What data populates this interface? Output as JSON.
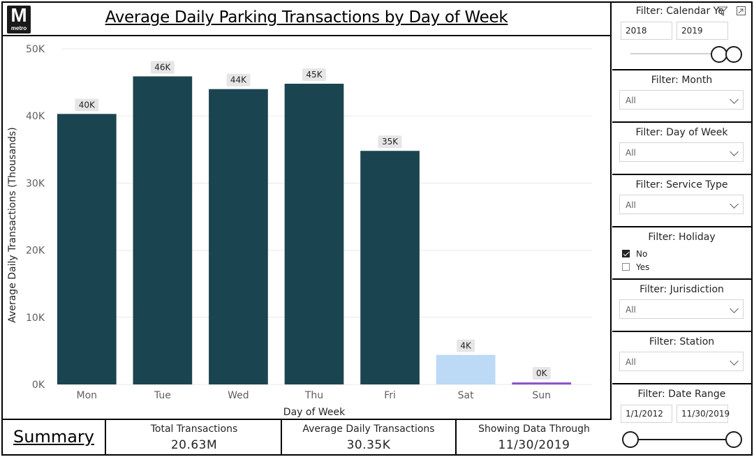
{
  "header": {
    "logo_letter": "M",
    "logo_sub": "metro",
    "title": "Average Daily Parking Transactions by Day of Week"
  },
  "chart_data": {
    "type": "bar",
    "title": "Average Daily Parking Transactions by Day of Week",
    "xlabel": "Day of Week",
    "ylabel": "Average Daily Transactions (Thousands)",
    "categories": [
      "Mon",
      "Tue",
      "Wed",
      "Thu",
      "Fri",
      "Sat",
      "Sun"
    ],
    "values": [
      40.3,
      45.9,
      44.0,
      44.8,
      34.8,
      4.4,
      0.3
    ],
    "data_labels": [
      "40K",
      "46K",
      "44K",
      "45K",
      "35K",
      "4K",
      "0K"
    ],
    "colors": [
      "#1a4450",
      "#1a4450",
      "#1a4450",
      "#1a4450",
      "#1a4450",
      "#bcd9f6",
      "#8c50c8"
    ],
    "ylim": [
      0,
      50
    ],
    "yticks": [
      0,
      10,
      20,
      30,
      40,
      50
    ],
    "ytick_labels": [
      "0K",
      "10K",
      "20K",
      "30K",
      "40K",
      "50K"
    ],
    "grid": true,
    "legend": "none"
  },
  "bottom": {
    "summary_link": "Summary",
    "kpis": [
      {
        "label": "Total Transactions",
        "value": "20.63M"
      },
      {
        "label": "Average Daily Transactions",
        "value": "30.35K"
      },
      {
        "label": "Showing Data Through",
        "value": "11/30/2019"
      }
    ]
  },
  "filters": {
    "calendar_year": {
      "title": "Filter: Calendar Ye",
      "from": "2018",
      "to": "2019"
    },
    "month": {
      "title": "Filter: Month",
      "value": "All"
    },
    "day_of_week": {
      "title": "Filter: Day of Week",
      "value": "All"
    },
    "service_type": {
      "title": "Filter: Service Type",
      "value": "All"
    },
    "holiday": {
      "title": "Filter: Holiday",
      "options": [
        {
          "label": "No",
          "checked": true
        },
        {
          "label": "Yes",
          "checked": false
        }
      ]
    },
    "jurisdiction": {
      "title": "Filter: Jurisdiction",
      "value": "All"
    },
    "station": {
      "title": "Filter: Station",
      "value": "All"
    },
    "date_range": {
      "title": "Filter: Date Range",
      "from": "1/1/2012",
      "to": "11/30/2019"
    }
  },
  "icons": {
    "filter": "filter-funnel-icon",
    "focus": "focus-mode-icon",
    "dropdown": "chevron-down-icon"
  }
}
